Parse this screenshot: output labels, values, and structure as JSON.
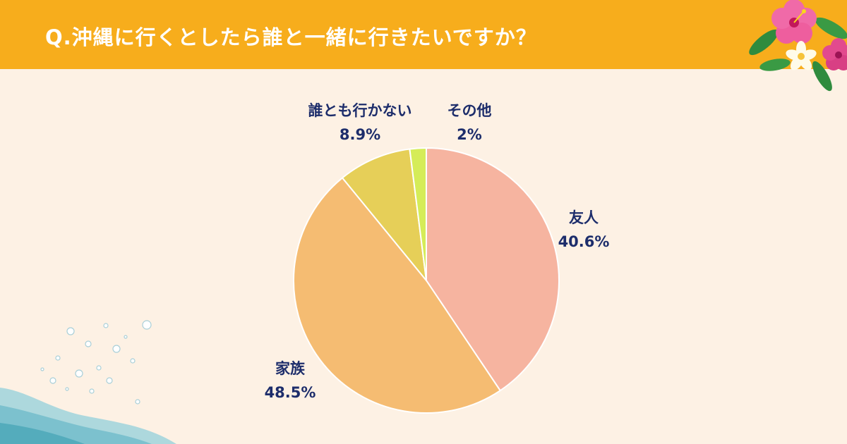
{
  "header": {
    "title": "Q.沖縄に行くとしたら誰と一緒に行きたいですか？"
  },
  "colors": {
    "header_bg": "#f7ad1c",
    "page_bg": "#fdf1e4",
    "label_text": "#1d2d6b"
  },
  "chart_data": {
    "type": "pie",
    "title": "Q.沖縄に行くとしたら誰と一緒に行きたいですか？",
    "start": "12 o'clock",
    "direction": "clockwise",
    "slices": [
      {
        "label": "友人",
        "value": 40.6,
        "value_label": "40.6%",
        "color": "#f6b4a0"
      },
      {
        "label": "家族",
        "value": 48.5,
        "value_label": "48.5%",
        "color": "#f5bc72"
      },
      {
        "label": "誰とも行かない",
        "value": 8.9,
        "value_label": "8.9%",
        "color": "#e6cf58"
      },
      {
        "label": "その他",
        "value": 2,
        "value_label": "2%",
        "color": "#d5ec58"
      }
    ]
  },
  "decorations": {
    "top_right": "hibiscus-flowers",
    "bottom_left": "water-splash"
  }
}
